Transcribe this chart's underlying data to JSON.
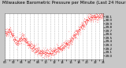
{
  "title": "Milwaukee Barometric Pressure per Minute (Last 24 Hours)",
  "background_color": "#c8c8c8",
  "plot_bg_color": "#ffffff",
  "line_color": "#ff0000",
  "grid_color": "#999999",
  "text_color": "#000000",
  "y_min": 28.9,
  "y_max": 30.2,
  "y_ticks": [
    29.0,
    29.1,
    29.2,
    29.3,
    29.4,
    29.5,
    29.6,
    29.7,
    29.8,
    29.9,
    30.0,
    30.1
  ],
  "n_points": 1440,
  "seed": 42,
  "title_fontsize": 4.0,
  "tick_fontsize": 3.0,
  "line_width": 0.4,
  "marker_size": 0.6,
  "x_tick_count": 24,
  "noise_scale": 0.06
}
